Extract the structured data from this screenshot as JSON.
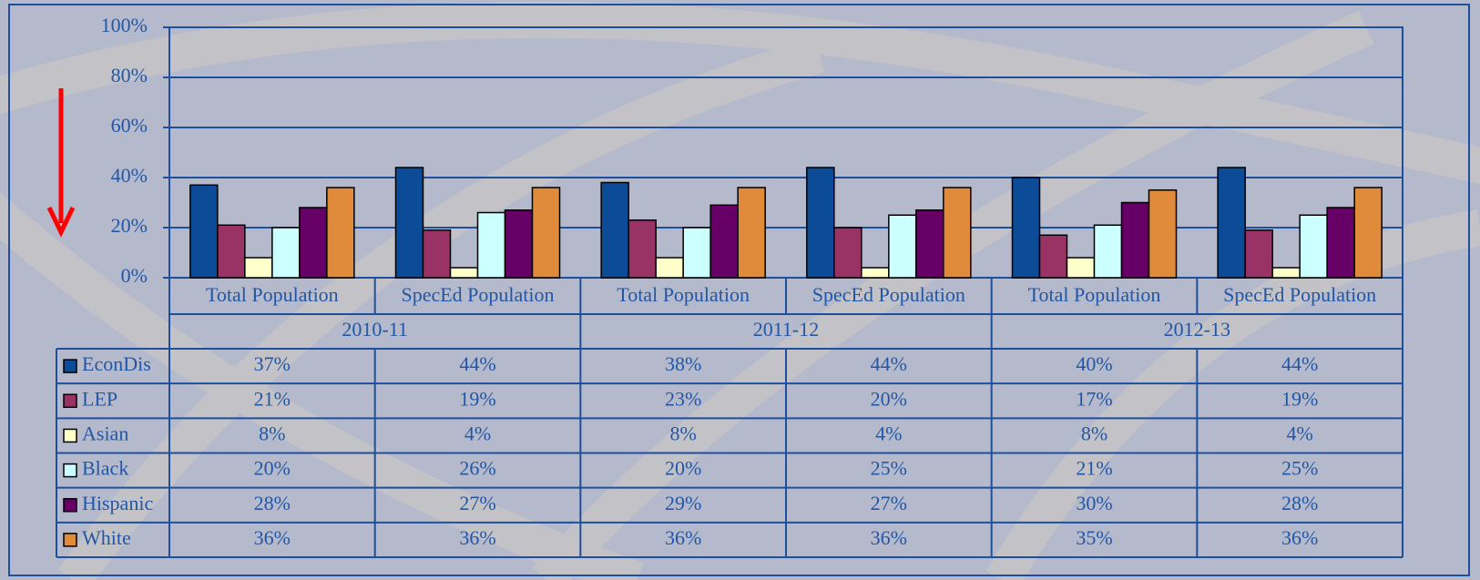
{
  "chart_data": {
    "type": "bar",
    "categories": [
      "Total Population",
      "SpecEd Population",
      "Total Population",
      "SpecEd Population",
      "Total Population",
      "SpecEd Population"
    ],
    "groups": [
      "2010-11",
      "2011-12",
      "2012-13"
    ],
    "series": [
      {
        "name": "EconDis",
        "color": "#0b4b98",
        "values": [
          37,
          44,
          38,
          44,
          40,
          44
        ],
        "value_labels": [
          "37%",
          "44%",
          "38%",
          "44%",
          "40%",
          "44%"
        ]
      },
      {
        "name": "LEP",
        "color": "#993366",
        "values": [
          21,
          19,
          23,
          20,
          17,
          19
        ],
        "value_labels": [
          "21%",
          "19%",
          "23%",
          "20%",
          "17%",
          "19%"
        ]
      },
      {
        "name": "Asian",
        "color": "#ffffcc",
        "values": [
          8,
          4,
          8,
          4,
          8,
          4
        ],
        "value_labels": [
          "8%",
          "4%",
          "8%",
          "4%",
          "8%",
          "4%"
        ]
      },
      {
        "name": "Black",
        "color": "#ccffff",
        "values": [
          20,
          26,
          20,
          25,
          21,
          25
        ],
        "value_labels": [
          "20%",
          "26%",
          "20%",
          "25%",
          "21%",
          "25%"
        ]
      },
      {
        "name": "Hispanic",
        "color": "#660066",
        "values": [
          28,
          27,
          29,
          27,
          30,
          28
        ],
        "value_labels": [
          "28%",
          "27%",
          "29%",
          "27%",
          "30%",
          "28%"
        ]
      },
      {
        "name": "White",
        "color": "#e08a3c",
        "values": [
          36,
          36,
          36,
          36,
          35,
          36
        ],
        "value_labels": [
          "36%",
          "36%",
          "36%",
          "36%",
          "35%",
          "36%"
        ]
      }
    ],
    "ylim": [
      0,
      100
    ],
    "yticks": [
      {
        "value": 0,
        "label": "0%"
      },
      {
        "value": 20,
        "label": "20%"
      },
      {
        "value": 40,
        "label": "40%"
      },
      {
        "value": 60,
        "label": "60%"
      },
      {
        "value": 80,
        "label": "80%"
      },
      {
        "value": 100,
        "label": "100%"
      }
    ],
    "grid": true
  }
}
